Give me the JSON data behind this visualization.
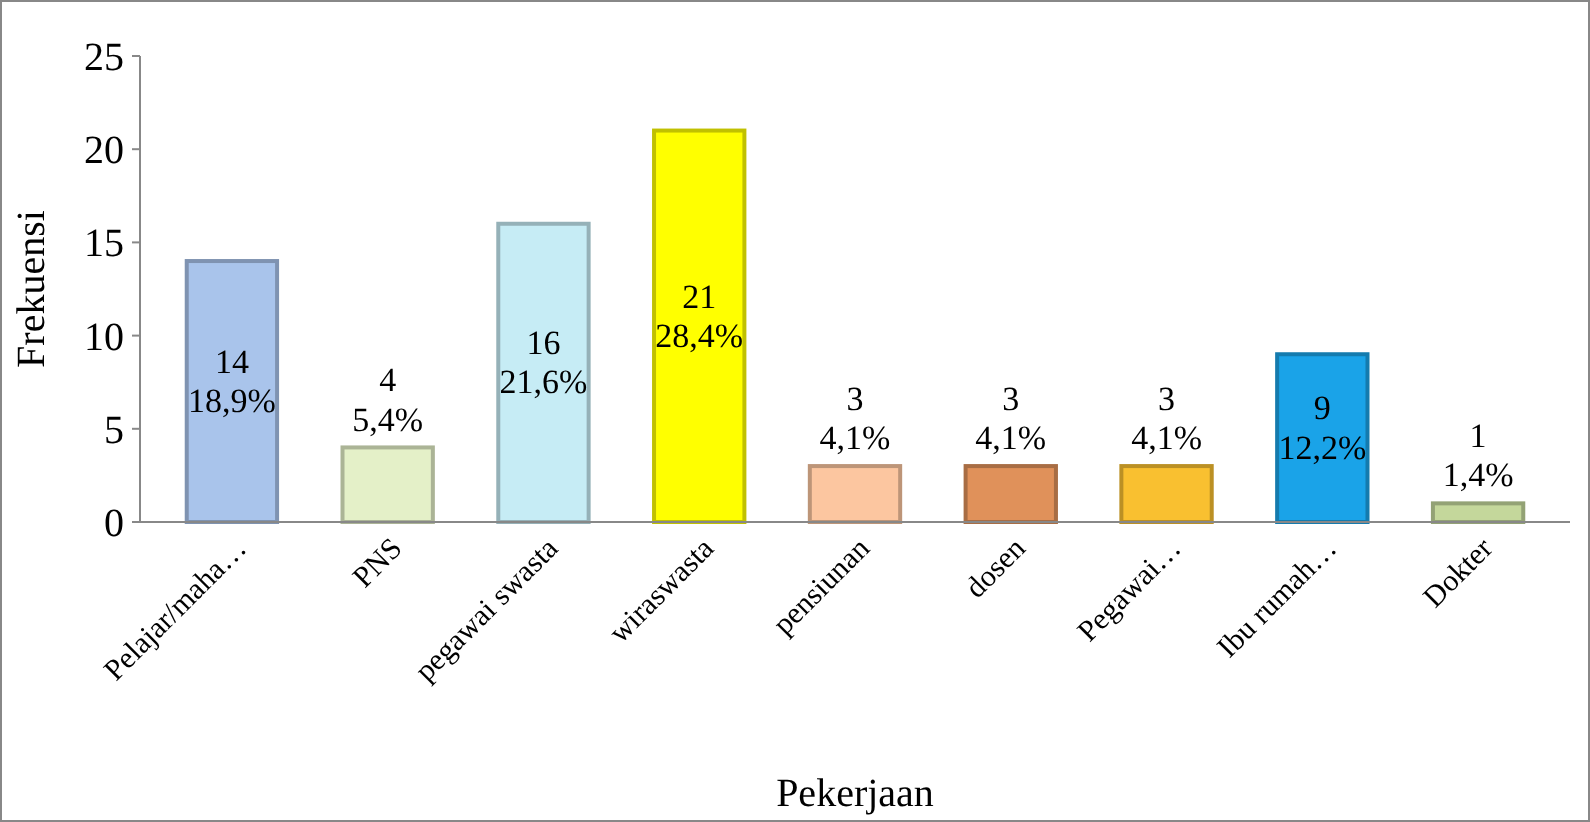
{
  "chart_data": {
    "type": "bar",
    "xlabel": "Pekerjaan",
    "ylabel": "Frekuensi",
    "categories": [
      "Pelajar/maha…",
      "PNS",
      "pegawai swasta",
      "wiraswasta",
      "pensiunan",
      "dosen",
      "Pegawai…",
      "Ibu rumah…",
      "Dokter"
    ],
    "values": [
      14,
      4,
      16,
      21,
      3,
      3,
      3,
      9,
      1
    ],
    "colors": [
      "#a9c4eb",
      "#e4f0c8",
      "#c6ecf5",
      "#ffff00",
      "#fcc6a0",
      "#e0915a",
      "#f9c030",
      "#1aa3e8",
      "#c4d79b"
    ],
    "value_labels": [
      "14\n18,9%",
      "4\n5,4%",
      "16\n21,6%",
      "21\n28,4%",
      "3\n4,1%",
      "3\n4,1%",
      "3\n4,1%",
      "9\n12,2%",
      "1\n1,4%"
    ],
    "ylim": [
      0,
      25
    ],
    "yticks": [
      0,
      5,
      10,
      15,
      20,
      25
    ]
  }
}
